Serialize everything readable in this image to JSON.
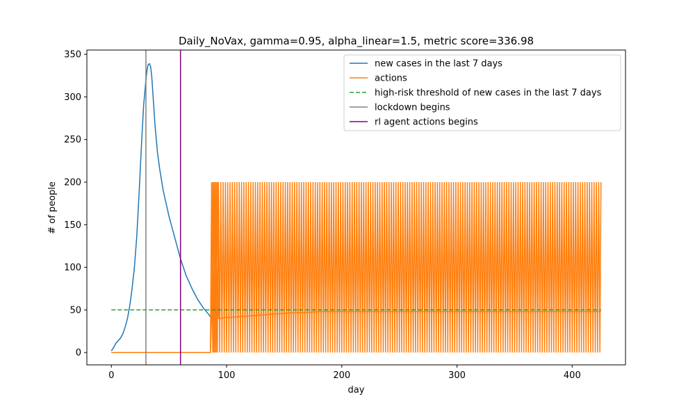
{
  "chart_data": {
    "type": "line",
    "title": "Daily_NoVax, gamma=0.95, alpha_linear=1.5, metric score=336.98",
    "xlabel": "day",
    "ylabel": "# of people",
    "xlim": [
      -21.25,
      446.25
    ],
    "ylim": [
      -14.5,
      355
    ],
    "xticks": [
      0,
      100,
      200,
      300,
      400
    ],
    "yticks": [
      0,
      50,
      100,
      150,
      200,
      250,
      300,
      350
    ],
    "grid": false,
    "legend_position": "top-right",
    "series": [
      {
        "name": "new cases in the last 7 days",
        "color": "#1f77b4",
        "style": "solid",
        "x": [
          0,
          2,
          4,
          6,
          8,
          10,
          12,
          14,
          16,
          18,
          20,
          22,
          24,
          26,
          28,
          30,
          31,
          32,
          33,
          34,
          35,
          36,
          38,
          40,
          42,
          45,
          48,
          50,
          55,
          60,
          65,
          70,
          75,
          80,
          85,
          87
        ],
        "y": [
          2,
          6,
          11,
          14,
          17,
          22,
          30,
          40,
          55,
          75,
          100,
          135,
          185,
          240,
          290,
          320,
          332,
          338,
          339,
          336,
          325,
          305,
          265,
          235,
          215,
          190,
          172,
          160,
          135,
          110,
          90,
          75,
          62,
          52,
          44,
          40
        ]
      },
      {
        "name": "actions",
        "color": "#ff7f0e",
        "style": "solid",
        "x": [
          0,
          86,
          87,
          88,
          89,
          90,
          91,
          92,
          93,
          100,
          110,
          120,
          130,
          140,
          150,
          160,
          170,
          180,
          200,
          250,
          300,
          350,
          400,
          425
        ],
        "y": [
          0,
          0,
          38,
          200,
          0,
          200,
          0,
          200,
          40,
          41,
          42,
          43,
          44,
          45,
          46,
          47,
          47,
          48,
          48,
          48,
          48,
          48,
          48,
          48
        ],
        "oscillation": {
          "from": 87,
          "to": 425,
          "low": 0,
          "high": 200,
          "period": 2
        }
      },
      {
        "name": "high-risk threshold of new cases in the last 7 days",
        "color": "#2ca02c",
        "style": "dashed",
        "x": [
          0,
          425
        ],
        "y": [
          50,
          50
        ]
      },
      {
        "name": "lockdown begins",
        "color": "#808080",
        "style": "solid",
        "vline": 30
      },
      {
        "name": "rl agent actions begins",
        "color": "#800080",
        "style": "solid",
        "vline": 60
      }
    ]
  }
}
